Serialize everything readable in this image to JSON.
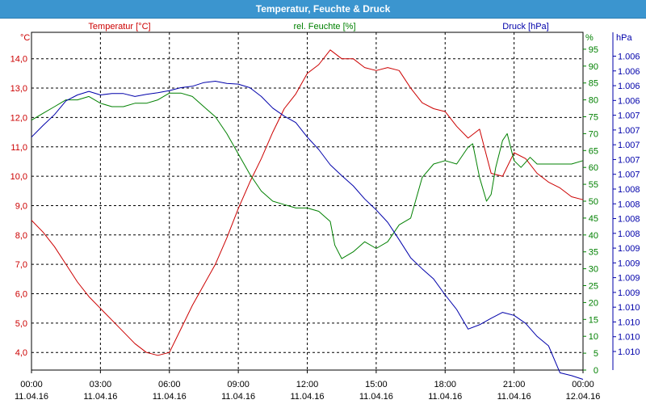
{
  "window": {
    "title": "Temperatur, Feuchte & Druck"
  },
  "colors": {
    "temperature": "#cc0000",
    "humidity": "#008000",
    "pressure": "#0000aa",
    "title_bar": "#3b95cf"
  },
  "chart_data": {
    "type": "line",
    "title": "Temperatur, Feuchte & Druck",
    "grid": true,
    "x_ticks": [
      {
        "time": "00:00",
        "date": "11.04.16"
      },
      {
        "time": "03:00",
        "date": "11.04.16"
      },
      {
        "time": "06:00",
        "date": "11.04.16"
      },
      {
        "time": "09:00",
        "date": "11.04.16"
      },
      {
        "time": "12:00",
        "date": "11.04.16"
      },
      {
        "time": "15:00",
        "date": "11.04.16"
      },
      {
        "time": "18:00",
        "date": "11.04.16"
      },
      {
        "time": "21:00",
        "date": "11.04.16"
      },
      {
        "time": "00:00",
        "date": "12.04.16"
      }
    ],
    "x_hours_range": [
      0,
      24
    ],
    "axes": {
      "temperature": {
        "label": "Temperatur [°C]",
        "unit": "°C",
        "ylim": [
          3.4,
          14.9
        ],
        "ticks": [
          "4,0",
          "5,0",
          "6,0",
          "7,0",
          "8,0",
          "9,0",
          "10,0",
          "11,0",
          "12,0",
          "13,0",
          "14,0"
        ]
      },
      "humidity": {
        "label": "rel. Feuchte [%]",
        "unit": "%",
        "ylim": [
          0,
          100
        ],
        "ticks": [
          "0",
          "5",
          "10",
          "15",
          "20",
          "25",
          "30",
          "35",
          "40",
          "45",
          "50",
          "55",
          "60",
          "65",
          "70",
          "75",
          "80",
          "85",
          "90",
          "95"
        ]
      },
      "pressure": {
        "label": "Druck [hPa]",
        "unit": "hPa",
        "ticks": [
          "1.006",
          "1.006",
          "1.006",
          "1.006",
          "1.007",
          "1.007",
          "1.007",
          "1.007",
          "1.007",
          "1.008",
          "1.008",
          "1.008",
          "1.008",
          "1.009",
          "1.009",
          "1.009",
          "1.009",
          "1.010",
          "1.010",
          "1.010",
          "1.010"
        ]
      }
    },
    "series": [
      {
        "name": "Temperatur [°C]",
        "axis": "temperature",
        "x": [
          0,
          0.5,
          1,
          1.5,
          2,
          2.5,
          3,
          3.5,
          4,
          4.5,
          5,
          5.5,
          6,
          6.5,
          7,
          7.5,
          8,
          8.5,
          9,
          9.5,
          10,
          10.5,
          11,
          11.5,
          12,
          12.5,
          13,
          13.5,
          14,
          14.5,
          15,
          15.5,
          16,
          16.5,
          17,
          17.5,
          18,
          18.5,
          19,
          19.5,
          20,
          20.5,
          21,
          21.5,
          22,
          22.5,
          23,
          23.5,
          24
        ],
        "values": [
          8.5,
          8.1,
          7.6,
          7.0,
          6.4,
          5.9,
          5.5,
          5.1,
          4.7,
          4.3,
          4.0,
          3.9,
          4.0,
          4.8,
          5.6,
          6.3,
          7.0,
          7.9,
          8.9,
          9.8,
          10.6,
          11.5,
          12.3,
          12.8,
          13.5,
          13.8,
          14.3,
          14.0,
          14.0,
          13.7,
          13.6,
          13.7,
          13.6,
          13.0,
          12.5,
          12.3,
          12.2,
          11.7,
          11.3,
          11.6,
          10.1,
          10.0,
          10.8,
          10.6,
          10.1,
          9.8,
          9.6,
          9.3,
          9.2
        ]
      },
      {
        "name": "rel. Feuchte [%]",
        "axis": "humidity",
        "x": [
          0,
          0.5,
          1,
          1.5,
          2,
          2.5,
          3,
          3.5,
          4,
          4.5,
          5,
          5.5,
          6,
          6.5,
          7,
          7.5,
          8,
          8.5,
          9,
          9.5,
          10,
          10.5,
          11,
          11.5,
          12,
          12.5,
          13,
          13.2,
          13.5,
          14,
          14.5,
          15,
          15.5,
          16,
          16.5,
          17,
          17.5,
          18,
          18.5,
          19,
          19.2,
          19.5,
          19.8,
          20,
          20.2,
          20.5,
          20.7,
          21,
          21.3,
          21.7,
          22,
          22.5,
          23,
          23.5,
          24
        ],
        "values": [
          74,
          76,
          78,
          80,
          80,
          81,
          79,
          78,
          78,
          79,
          79,
          80,
          82,
          82,
          81,
          78,
          75,
          70,
          64,
          58,
          53,
          50,
          49,
          48,
          48,
          47,
          44,
          37,
          33,
          35,
          38,
          36,
          38,
          43,
          45,
          57,
          61,
          62,
          61,
          66,
          67,
          57,
          50,
          52,
          60,
          68,
          70,
          62,
          60,
          63,
          61,
          61,
          61,
          61,
          62
        ]
      },
      {
        "name": "Druck [hPa]",
        "axis": "pressure",
        "x": [
          0,
          0.5,
          1,
          1.5,
          2,
          2.5,
          3,
          3.5,
          4,
          4.5,
          5,
          5.5,
          6,
          6.5,
          7,
          7.5,
          8,
          8.5,
          9,
          9.5,
          10,
          10.5,
          11,
          11.5,
          12,
          12.5,
          13,
          13.5,
          14,
          14.5,
          15,
          15.5,
          16,
          16.5,
          17,
          17.5,
          18,
          18.5,
          19,
          19.5,
          20,
          20.5,
          21,
          21.5,
          22,
          22.5,
          23,
          23.5,
          24
        ],
        "values": [
          1.00946,
          1.00962,
          1.00977,
          1.00996,
          1.01004,
          1.01009,
          1.01004,
          1.01006,
          1.01006,
          1.01002,
          1.01005,
          1.01007,
          1.0101,
          1.01014,
          1.01016,
          1.01021,
          1.01023,
          1.0102,
          1.01019,
          1.01014,
          1.01002,
          1.00986,
          1.00975,
          1.00966,
          1.00946,
          1.00929,
          1.00908,
          1.00893,
          1.00879,
          1.00861,
          1.00846,
          1.00829,
          1.00805,
          1.0078,
          1.00765,
          1.00751,
          1.00729,
          1.00709,
          1.00682,
          1.00688,
          1.00697,
          1.00705,
          1.00701,
          1.0069,
          1.00672,
          1.00659,
          1.00622,
          1.00618,
          1.00613
        ]
      }
    ]
  }
}
